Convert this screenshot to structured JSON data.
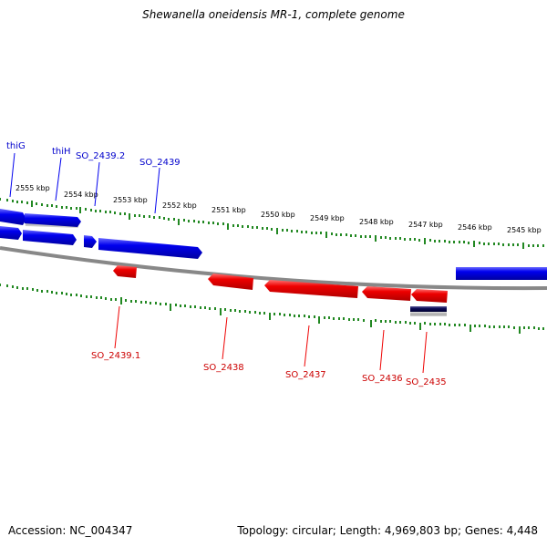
{
  "title": "Shewanella oneidensis MR-1, complete genome",
  "footer": {
    "accession": "Accession: NC_004347",
    "summary": "Topology: circular; Length: 4,969,803 bp; Genes: 4,448"
  },
  "colors": {
    "forward_gene": "#0000ee",
    "reverse_gene": "#ee0000",
    "backbone": "#888888",
    "tick": "#228822",
    "dark_gene": "#000066"
  },
  "scale_labels": [
    "2555 kbp",
    "2554 kbp",
    "2553 kbp",
    "2552 kbp",
    "2551 kbp",
    "2550 kbp",
    "2549 kbp",
    "2548 kbp",
    "2547 kbp",
    "2546 kbp",
    "2545 kbp"
  ],
  "forward_gene_labels": [
    "thiG",
    "thiH",
    "SO_2439.2",
    "SO_2439"
  ],
  "reverse_gene_labels": [
    "SO_2439.1",
    "SO_2438",
    "SO_2437",
    "SO_2436",
    "SO_2435"
  ]
}
